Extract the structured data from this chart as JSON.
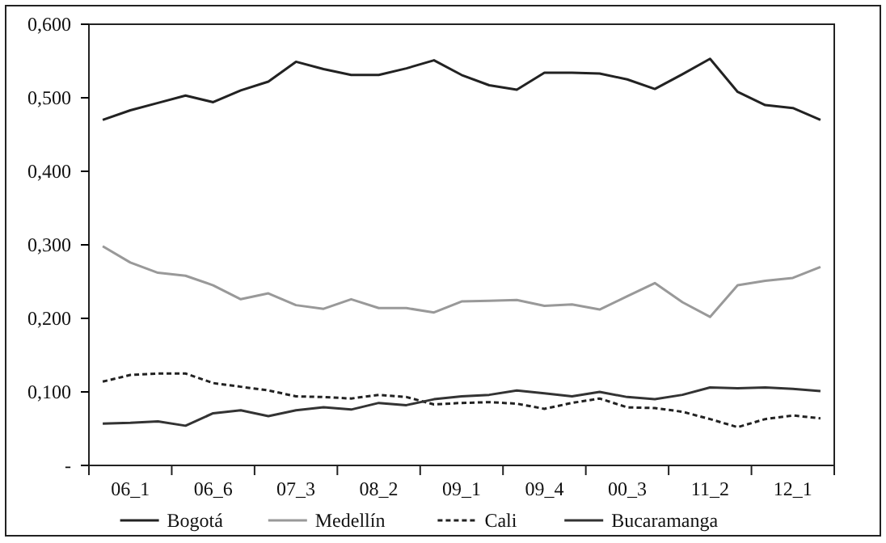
{
  "chart_data": {
    "type": "line",
    "categories": [
      null,
      "06_1",
      null,
      null,
      "06_6",
      null,
      null,
      "07_3",
      null,
      null,
      "08_2",
      null,
      null,
      "09_1",
      null,
      null,
      "09_4",
      null,
      null,
      "00_3",
      null,
      null,
      "11_2",
      null,
      null,
      "12_1",
      null
    ],
    "series": [
      {
        "name": "Bogotá",
        "color": "#222222",
        "line_style": "solid",
        "values": [
          0.47,
          0.483,
          0.493,
          0.503,
          0.494,
          0.51,
          0.522,
          0.549,
          0.539,
          0.531,
          0.531,
          0.54,
          0.551,
          0.531,
          0.517,
          0.511,
          0.534,
          0.534,
          0.533,
          0.525,
          0.512,
          0.532,
          0.553,
          0.508,
          0.49,
          0.486,
          0.47
        ]
      },
      {
        "name": "Medellín",
        "color": "#999999",
        "line_style": "solid",
        "values": [
          0.298,
          0.276,
          0.262,
          0.258,
          0.245,
          0.226,
          0.234,
          0.218,
          0.213,
          0.226,
          0.214,
          0.214,
          0.208,
          0.223,
          0.224,
          0.225,
          0.217,
          0.219,
          0.212,
          0.23,
          0.248,
          0.222,
          0.202,
          0.245,
          0.251,
          0.255,
          0.27
        ]
      },
      {
        "name": "Cali",
        "color": "#222222",
        "line_style": "dashed",
        "values": [
          0.114,
          0.123,
          0.125,
          0.125,
          0.112,
          0.107,
          0.102,
          0.094,
          0.093,
          0.091,
          0.096,
          0.093,
          0.083,
          0.085,
          0.086,
          0.084,
          0.077,
          0.085,
          0.091,
          0.079,
          0.078,
          0.073,
          0.063,
          0.052,
          0.063,
          0.068,
          0.064
        ]
      },
      {
        "name": "Bucaramanga",
        "color": "#333333",
        "line_style": "solid",
        "values": [
          0.057,
          0.058,
          0.06,
          0.054,
          0.071,
          0.075,
          0.067,
          0.075,
          0.079,
          0.076,
          0.085,
          0.082,
          0.09,
          0.094,
          0.096,
          0.102,
          0.098,
          0.094,
          0.1,
          0.093,
          0.09,
          0.096,
          0.106,
          0.105,
          0.106,
          0.104,
          0.101
        ]
      }
    ],
    "ylim": [
      0,
      0.6
    ],
    "yticks": [
      {
        "value": 0,
        "label": "-"
      },
      {
        "value": 0.1,
        "label": "0,100"
      },
      {
        "value": 0.2,
        "label": "0,200"
      },
      {
        "value": 0.3,
        "label": "0,300"
      },
      {
        "value": 0.4,
        "label": "0,400"
      },
      {
        "value": 0.5,
        "label": "0,500"
      },
      {
        "value": 0.6,
        "label": "0,600"
      }
    ],
    "grid": false,
    "legend": "bottom",
    "marker": "none"
  }
}
